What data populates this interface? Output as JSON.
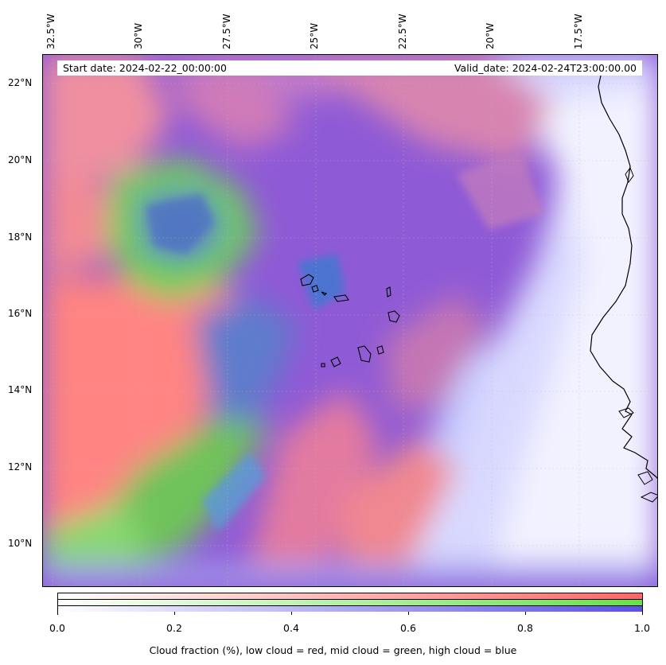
{
  "map": {
    "lon_labels": [
      "32.5°W",
      "30°W",
      "27.5°W",
      "25°W",
      "22.5°W",
      "20°W",
      "17.5°W"
    ],
    "lat_labels": [
      "22°N",
      "20°N",
      "18°N",
      "16°N",
      "14°N",
      "12°N",
      "10°N"
    ],
    "colors": {
      "low_cloud": "#ff6666",
      "mid_cloud": "#66e04c",
      "high_cloud": "#5a50e6",
      "mixed_low_high": "#8a55d8",
      "clear": "#ffffff"
    }
  },
  "banner": {
    "start_date": "Start date: 2024-02-22_00:00:00",
    "valid_date": "Valid_date: 2024-02-24T23:00:00.00"
  },
  "colorbar": {
    "ticks": [
      "0.0",
      "0.2",
      "0.4",
      "0.6",
      "0.8",
      "1.0"
    ],
    "label": "Cloud fraction (%), low cloud = red, mid cloud = green, high cloud = blue"
  }
}
